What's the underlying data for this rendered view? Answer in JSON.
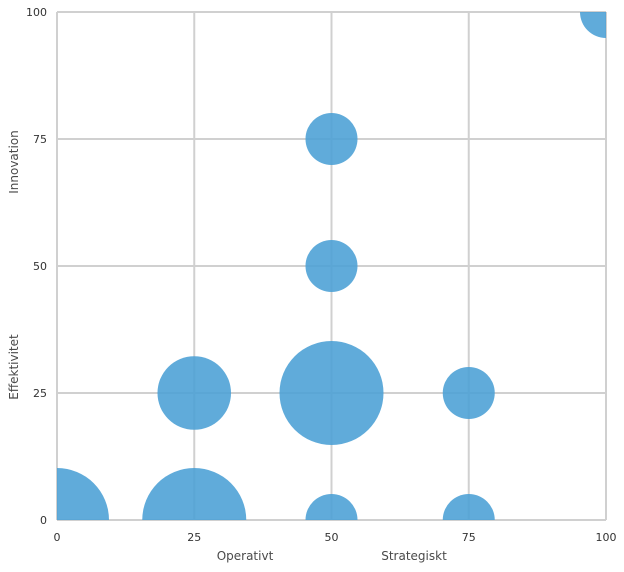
{
  "chart_data": {
    "type": "bubble",
    "x_ticks": [
      "0",
      "25",
      "50",
      "75",
      "100"
    ],
    "y_ticks": [
      "0",
      "25",
      "50",
      "75",
      "100"
    ],
    "xlim": [
      0,
      100
    ],
    "ylim": [
      0,
      100
    ],
    "grid": true,
    "x_axis_labels": [
      "Operativt",
      "Strategiskt"
    ],
    "y_axis_labels": [
      "Effektivitet",
      "Innovation"
    ],
    "bubble_color": "#4a9fd5",
    "grid_color": "#d0d0d0",
    "points": [
      {
        "x": 0,
        "y": 0,
        "size": 4
      },
      {
        "x": 25,
        "y": 0,
        "size": 4
      },
      {
        "x": 50,
        "y": 0,
        "size": 1
      },
      {
        "x": 75,
        "y": 0,
        "size": 1
      },
      {
        "x": 25,
        "y": 25,
        "size": 2
      },
      {
        "x": 50,
        "y": 25,
        "size": 4
      },
      {
        "x": 75,
        "y": 25,
        "size": 1
      },
      {
        "x": 50,
        "y": 50,
        "size": 1
      },
      {
        "x": 50,
        "y": 75,
        "size": 1
      },
      {
        "x": 100,
        "y": 100,
        "size": 1
      }
    ]
  }
}
